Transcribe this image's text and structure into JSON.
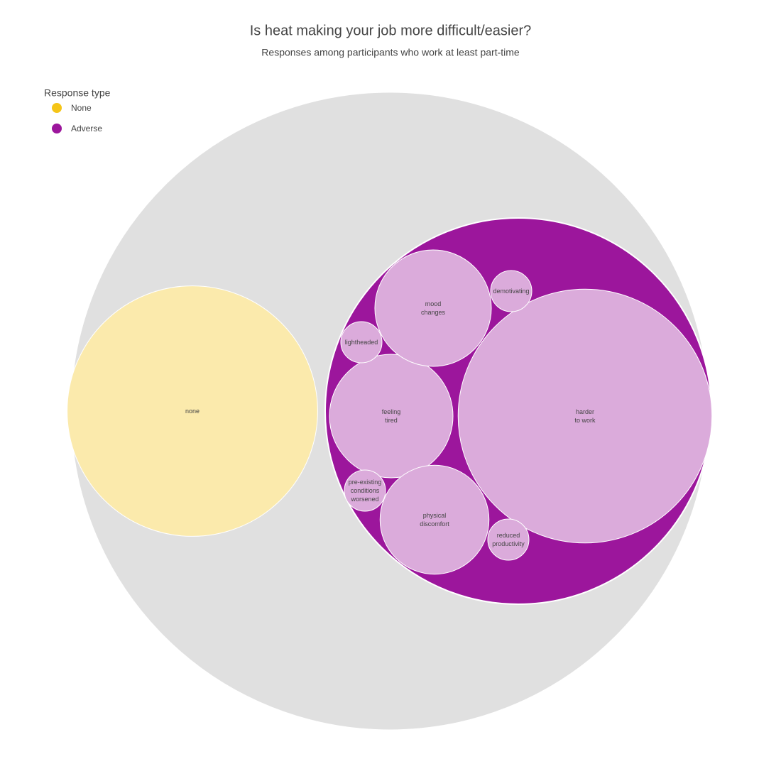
{
  "chart_data": {
    "type": "pack",
    "title": "Is heat making your job more difficult/easier?",
    "subtitle": "Responses among participants who work at least part-time",
    "legend_title": "Response type",
    "legend_position": "top-left",
    "root_color": "#e0e0e0",
    "series": [
      {
        "name": "None",
        "color": "#f5c518",
        "labels": [
          "none"
        ],
        "values": [
          37
        ]
      },
      {
        "name": "Adverse",
        "color": "#9c169c",
        "labels": [
          "harder\nto work",
          "feeling\ntired",
          "mood\nchanges",
          "physical\ndiscomfort",
          "demotivating",
          "lightheaded",
          "pre-existing\nconditions\nworsened",
          "reduced\nproductivity"
        ],
        "values": [
          38,
          9,
          8,
          7,
          1,
          1,
          1,
          1
        ]
      }
    ]
  }
}
